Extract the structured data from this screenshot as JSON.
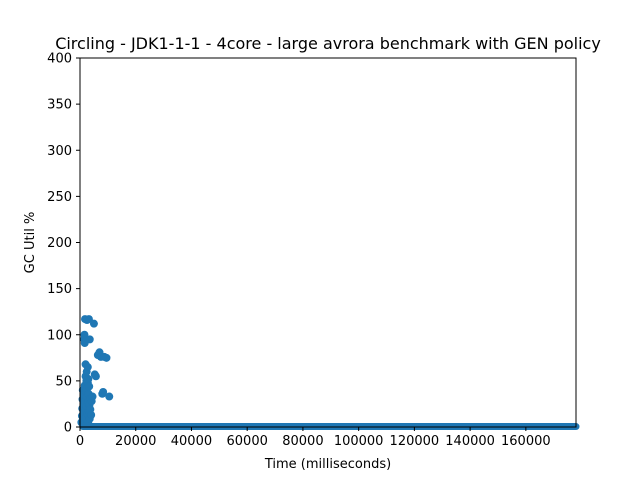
{
  "chart_data": {
    "type": "scatter",
    "title": "Circling - JDK1-1-1 - 4core -  large avrora benchmark with GEN policy",
    "xlabel": "Time (milliseconds)",
    "ylabel": "GC Util %",
    "xlim": [
      0,
      178000
    ],
    "ylim": [
      0,
      400
    ],
    "xticks": [
      0,
      20000,
      40000,
      60000,
      80000,
      100000,
      120000,
      140000,
      160000
    ],
    "yticks": [
      0,
      50,
      100,
      150,
      200,
      250,
      300,
      350,
      400
    ],
    "grid": false,
    "color": "#1f77b4",
    "series": [
      {
        "points": [
          [
            500,
            5
          ],
          [
            700,
            12
          ],
          [
            800,
            20
          ],
          [
            900,
            30
          ],
          [
            1000,
            40
          ],
          [
            1100,
            8
          ],
          [
            1200,
            15
          ],
          [
            1300,
            25
          ],
          [
            1400,
            35
          ],
          [
            1500,
            3
          ],
          [
            1500,
            95
          ],
          [
            1600,
            100
          ],
          [
            1700,
            91
          ],
          [
            1700,
            45
          ],
          [
            1800,
            117
          ],
          [
            1800,
            28
          ],
          [
            1900,
            10
          ],
          [
            2000,
            68
          ],
          [
            2000,
            55
          ],
          [
            2100,
            18
          ],
          [
            2200,
            38
          ],
          [
            2200,
            2
          ],
          [
            2300,
            50
          ],
          [
            2400,
            60
          ],
          [
            2400,
            22
          ],
          [
            2500,
            116
          ],
          [
            2500,
            32
          ],
          [
            2600,
            42
          ],
          [
            2700,
            14
          ],
          [
            2800,
            65
          ],
          [
            2800,
            48
          ],
          [
            2900,
            27
          ],
          [
            3000,
            52
          ],
          [
            3000,
            6
          ],
          [
            3100,
            36
          ],
          [
            3200,
            117
          ],
          [
            3200,
            17
          ],
          [
            3300,
            44
          ],
          [
            3400,
            24
          ],
          [
            3500,
            95
          ],
          [
            3500,
            9
          ],
          [
            3600,
            30
          ],
          [
            3700,
            19
          ],
          [
            3800,
            31
          ],
          [
            4000,
            13
          ],
          [
            4200,
            28
          ],
          [
            4500,
            33
          ],
          [
            5000,
            112
          ],
          [
            5300,
            57
          ],
          [
            5700,
            55
          ],
          [
            6400,
            78
          ],
          [
            7000,
            81
          ],
          [
            7500,
            76
          ],
          [
            8000,
            36
          ],
          [
            8300,
            38
          ],
          [
            8700,
            76
          ],
          [
            9500,
            75
          ],
          [
            10500,
            33
          ]
        ]
      },
      {
        "line_from": [
          1000,
          0.5
        ],
        "line_to": [
          178000,
          0.5
        ]
      }
    ]
  }
}
